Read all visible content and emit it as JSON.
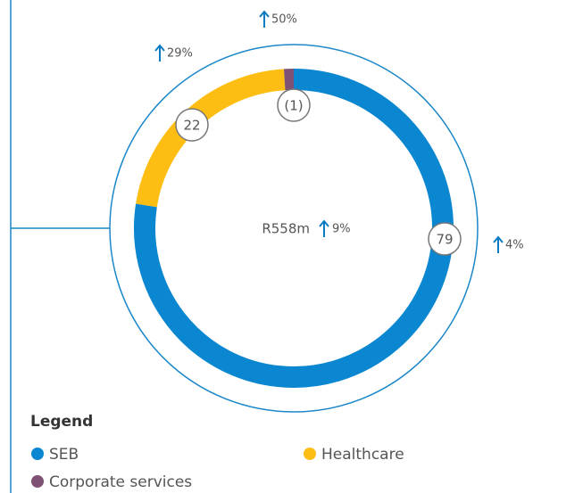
{
  "chart_data": {
    "type": "pie",
    "categories": [
      "SEB",
      "Healthcare",
      "Corporate services"
    ],
    "values": [
      79,
      22,
      -1
    ],
    "value_labels": [
      "79",
      "22",
      "(1)"
    ],
    "colors": [
      "#0a87d0",
      "#fdbd12",
      "#7e5272"
    ],
    "change_labels": [
      "4%",
      "29%",
      "50%"
    ],
    "total_label": "R558m",
    "total_change_label": "9%",
    "legend_title": "Legend"
  }
}
